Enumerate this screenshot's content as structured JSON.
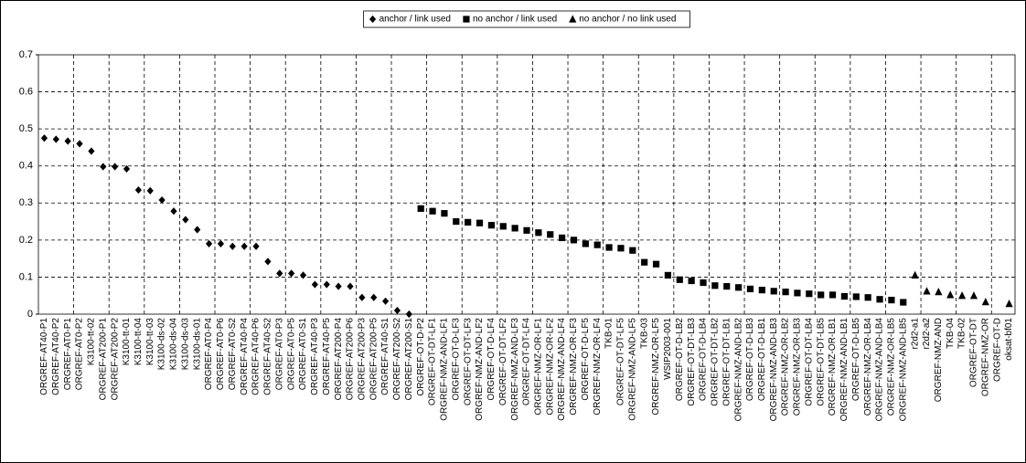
{
  "chart_data": {
    "type": "scatter",
    "categories": [
      "ORGREF-AT40-P1",
      "ORGREF-AT40-P2",
      "ORGREF-AT0-P1",
      "ORGREF-AT0-P2",
      "K3100-tt-02",
      "ORGREF-AT200-P1",
      "ORGREF-AT200-P2",
      "K3100-tt-01",
      "K3100-tt-04",
      "K3100-tt-03",
      "K3100-ds-02",
      "K3100-ds-04",
      "K3100-ds-03",
      "K3100-ds-01",
      "ORGREF-AT0-P4",
      "ORGREF-AT0-P6",
      "ORGREF-AT0-S2",
      "ORGREF-AT40-P4",
      "ORGREF-AT40-P6",
      "ORGREF-AT40-S2",
      "ORGREF-AT0-P3",
      "ORGREF-AT0-P5",
      "ORGREF-AT0-S1",
      "ORGREF-AT40-P3",
      "ORGREF-AT40-P5",
      "ORGREF-AT200-P4",
      "ORGREF-AT200-P6",
      "ORGREF-AT200-P3",
      "ORGREF-AT200-P5",
      "ORGREF-AT40-S1",
      "ORGREF-AT200-S2",
      "ORGREF-AT200-S1",
      "ORGREF-OT-D-P2",
      "ORGREF-OT-DT-LF1",
      "ORGREF-NMZ-AND-LF1",
      "ORGREF-OT-D-LF3",
      "ORGREF-OT-DT-LF3",
      "ORGREF-NMZ-AND-LF2",
      "ORGREF-OT-D-LF4",
      "ORGREF-OT-DT-LF2",
      "ORGREF-NMZ-AND-LF3",
      "ORGREF-OT-DT-LF4",
      "ORGREF-NMZ-OR-LF1",
      "ORGREF-NMZ-OR-LF2",
      "ORGREF-NMZ-AND-LF4",
      "ORGREF-NMZ-OR-LF3",
      "ORGREF-OT-D-LF5",
      "ORGREF-NMZ-OR-LF4",
      "TKB-01",
      "ORGREF-OT-DT-LF5",
      "ORGREF-NMZ-AND-LF5",
      "TKB-03",
      "ORGREF-NMZ-OR-LF5",
      "WSIP2003-001",
      "ORGREF-OT-D-LB2",
      "ORGREF-OT-DT-LB3",
      "ORGREF-OT-D-LB4",
      "ORGREF-OT-DT-LB2",
      "ORGREF-OT-DT-LB1",
      "ORGREF-NMZ-AND-LB2",
      "ORGREF-OT-D-LB3",
      "ORGREF-OT-D-LB1",
      "ORGREF-NMZ-AND-LB3",
      "ORGREF-NMZ-OR-LB2",
      "ORGREF-NMZ-OR-LB3",
      "ORGREF-OT-DT-LB4",
      "ORGREF-OT-DT-LB5",
      "ORGREF-NMZ-OR-LB1",
      "ORGREF-NMZ-AND-LB1",
      "ORGREF-OT-D-LB5",
      "ORGREF-NMZ-OR-LB4",
      "ORGREF-NMZ-AND-LB4",
      "ORGREF-NMZ-OR-LB5",
      "ORGREF-NMZ-AND-LB5",
      "r2d2-a1",
      "r2d2-a2",
      "ORGREF-NMZ-AND",
      "TKB-04",
      "TKB-02",
      "ORGREF-OT-DT",
      "ORGREF-NMZ-OR",
      "ORGREF-OT-D",
      "oksat-bf01"
    ],
    "series": [
      {
        "name": "anchor / link used",
        "color": "#000000",
        "marker": "diamond",
        "values": [
          0.475,
          0.472,
          0.467,
          0.46,
          0.44,
          0.398,
          0.398,
          0.392,
          0.335,
          0.333,
          0.308,
          0.278,
          0.255,
          0.228,
          0.19,
          0.19,
          0.183,
          0.183,
          0.183,
          0.142,
          0.11,
          0.11,
          0.105,
          0.08,
          0.08,
          0.075,
          0.075,
          0.045,
          0.045,
          0.035,
          0.01,
          0.0,
          null,
          null,
          null,
          null,
          null,
          null,
          null,
          null,
          null,
          null,
          null,
          null,
          null,
          null,
          null,
          null,
          null,
          null,
          null,
          null,
          null,
          null,
          null,
          null,
          null,
          null,
          null,
          null,
          null,
          null,
          null,
          null,
          null,
          null,
          null,
          null,
          null,
          null,
          null,
          null,
          null,
          null,
          null,
          null,
          null,
          null,
          null,
          null,
          null,
          null,
          null
        ]
      },
      {
        "name": "no anchor / link used",
        "color": "#000000",
        "marker": "square",
        "values": [
          null,
          null,
          null,
          null,
          null,
          null,
          null,
          null,
          null,
          null,
          null,
          null,
          null,
          null,
          null,
          null,
          null,
          null,
          null,
          null,
          null,
          null,
          null,
          null,
          null,
          null,
          null,
          null,
          null,
          null,
          null,
          null,
          0.285,
          0.278,
          0.272,
          0.25,
          0.248,
          0.246,
          0.24,
          0.237,
          0.232,
          0.226,
          0.22,
          0.215,
          0.206,
          0.2,
          0.19,
          0.187,
          0.18,
          0.178,
          0.172,
          0.14,
          0.135,
          0.105,
          0.093,
          0.09,
          0.085,
          0.077,
          0.075,
          0.072,
          0.068,
          0.065,
          0.062,
          0.06,
          0.057,
          0.055,
          0.052,
          0.052,
          0.048,
          0.047,
          0.045,
          0.04,
          0.038,
          0.032,
          null,
          null,
          null,
          null,
          null,
          null,
          null,
          null,
          null
        ]
      },
      {
        "name": "no anchor / no link used",
        "color": "#000000",
        "marker": "triangle",
        "values": [
          null,
          null,
          null,
          null,
          null,
          null,
          null,
          null,
          null,
          null,
          null,
          null,
          null,
          null,
          null,
          null,
          null,
          null,
          null,
          null,
          null,
          null,
          null,
          null,
          null,
          null,
          null,
          null,
          null,
          null,
          null,
          null,
          null,
          null,
          null,
          null,
          null,
          null,
          null,
          null,
          null,
          null,
          null,
          null,
          null,
          null,
          null,
          null,
          null,
          null,
          null,
          null,
          null,
          null,
          null,
          null,
          null,
          null,
          null,
          null,
          null,
          null,
          null,
          null,
          null,
          null,
          null,
          null,
          null,
          null,
          null,
          null,
          null,
          null,
          0.105,
          0.062,
          0.06,
          0.052,
          0.05,
          0.05,
          0.033,
          null,
          0.028
        ]
      }
    ],
    "ylim": [
      0,
      0.7
    ],
    "yticks": [
      0,
      0.1,
      0.2,
      0.3,
      0.4,
      0.5,
      0.6,
      0.7
    ],
    "grid": true,
    "legend": "top"
  }
}
